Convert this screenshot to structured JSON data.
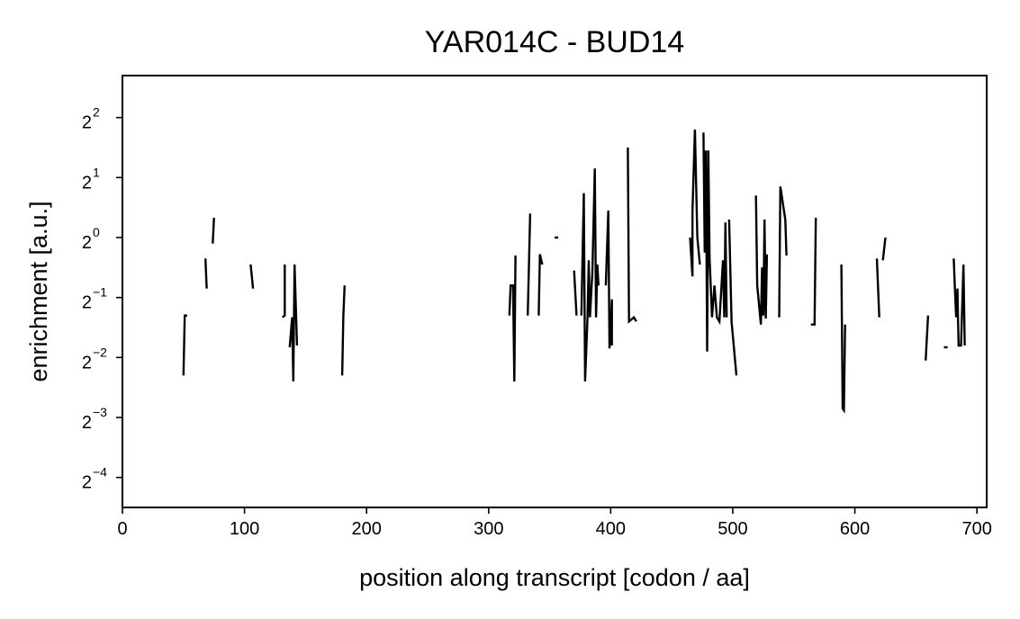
{
  "chart_data": {
    "type": "line",
    "title": "YAR014C - BUD14",
    "xlabel": "position along transcript [codon / aa]",
    "ylabel": "enrichment [a.u.]",
    "xlim": [
      0,
      708
    ],
    "ylim_log2": [
      -4.5,
      2.7
    ],
    "y_scale": "log2",
    "grid": false,
    "legend": "none",
    "line_color": "#000000",
    "x_ticks": [
      0,
      100,
      200,
      300,
      400,
      500,
      600,
      700
    ],
    "x_tick_labels": [
      "0",
      "100",
      "200",
      "300",
      "400",
      "500",
      "600",
      "700"
    ],
    "y_ticks_log2": [
      2,
      1,
      0,
      -1,
      -2,
      -3,
      -4
    ],
    "y_tick_labels": [
      {
        "base": "2",
        "exp": "2"
      },
      {
        "base": "2",
        "exp": "1"
      },
      {
        "base": "2",
        "exp": "0"
      },
      {
        "base": "2",
        "exp": "−1"
      },
      {
        "base": "2",
        "exp": "−2"
      },
      {
        "base": "2",
        "exp": "−3"
      },
      {
        "base": "2",
        "exp": "−4"
      }
    ],
    "series": [
      {
        "values_log2": [
          [
            50,
            -2.3
          ],
          [
            51,
            -1.3
          ],
          [
            53,
            -1.3
          ]
        ]
      },
      {
        "values_log2": [
          [
            68,
            -0.35
          ],
          [
            69,
            -0.85
          ]
        ]
      },
      {
        "values_log2": [
          [
            74,
            -0.1
          ],
          [
            75,
            0.33
          ]
        ]
      },
      {
        "values_log2": [
          [
            105,
            -0.45
          ],
          [
            107,
            -0.85
          ]
        ]
      },
      {
        "values_log2": [
          [
            131,
            -1.33
          ],
          [
            133,
            -1.3
          ],
          [
            133,
            -0.45
          ]
        ]
      },
      {
        "values_log2": [
          [
            137,
            -1.83
          ],
          [
            139,
            -1.33
          ],
          [
            140,
            -2.4
          ],
          [
            141,
            -0.45
          ],
          [
            143,
            -1.8
          ]
        ]
      },
      {
        "values_log2": [
          [
            180,
            -2.3
          ],
          [
            181,
            -1.3
          ],
          [
            182,
            -0.8
          ]
        ]
      },
      {
        "values_log2": [
          [
            317,
            -1.3
          ],
          [
            318,
            -0.8
          ],
          [
            320,
            -0.8
          ],
          [
            321,
            -2.4
          ],
          [
            322,
            -0.3
          ]
        ]
      },
      {
        "values_log2": [
          [
            332,
            -1.3
          ],
          [
            334,
            0.4
          ]
        ]
      },
      {
        "values_log2": [
          [
            341,
            -1.3
          ],
          [
            342,
            -0.28
          ],
          [
            344,
            -0.45
          ]
        ]
      },
      {
        "values_log2": [
          [
            354,
            0
          ],
          [
            357,
            0
          ]
        ]
      },
      {
        "values_log2": [
          [
            370,
            -0.55
          ],
          [
            372,
            -1.3
          ]
        ]
      },
      {
        "values_log2": [
          [
            376,
            -1.3
          ],
          [
            378,
            0.74
          ],
          [
            379,
            -2.4
          ],
          [
            381,
            -1.33
          ],
          [
            382,
            -0.38
          ],
          [
            383,
            -1.33
          ],
          [
            385,
            -0.58
          ],
          [
            387,
            1.15
          ],
          [
            388,
            -1.33
          ],
          [
            389,
            -0.45
          ],
          [
            390,
            -0.8
          ]
        ]
      },
      {
        "values_log2": [
          [
            396,
            -0.8
          ],
          [
            398,
            0.45
          ],
          [
            399,
            -1.85
          ],
          [
            401,
            -1.03
          ],
          [
            401,
            -1.8
          ]
        ]
      },
      {
        "values_log2": [
          [
            414,
            1.5
          ],
          [
            415,
            -1.4
          ],
          [
            419,
            -1.33
          ],
          [
            421,
            -1.4
          ]
        ]
      },
      {
        "values_log2": [
          [
            465,
            0
          ],
          [
            467,
            -0.65
          ],
          [
            467,
            0.45
          ],
          [
            469,
            1.8
          ],
          [
            471,
            0
          ],
          [
            473,
            -0.45
          ]
        ]
      },
      {
        "values_log2": [
          [
            476,
            1.75
          ],
          [
            477,
            -0.25
          ],
          [
            478,
            1.45
          ],
          [
            479,
            -1.9
          ],
          [
            480,
            1.45
          ],
          [
            481,
            -0.35
          ],
          [
            483,
            -1.33
          ],
          [
            485,
            -0.8
          ],
          [
            487,
            -1.33
          ],
          [
            489,
            -1.4
          ],
          [
            492,
            -0.38
          ],
          [
            493,
            -1.33
          ],
          [
            494,
            0.25
          ],
          [
            495,
            -1.33
          ]
        ]
      },
      {
        "values_log2": [
          [
            497,
            0.3
          ],
          [
            499,
            -1.4
          ],
          [
            503,
            -2.3
          ]
        ]
      },
      {
        "values_log2": [
          [
            519,
            0.7
          ],
          [
            520,
            -0.8
          ],
          [
            523,
            -1.45
          ],
          [
            524,
            -0.5
          ],
          [
            525,
            -1.3
          ],
          [
            526,
            0.3
          ],
          [
            527,
            -1.35
          ],
          [
            528,
            -0.28
          ]
        ]
      },
      {
        "values_log2": [
          [
            538,
            -1.33
          ],
          [
            539,
            0.85
          ],
          [
            543,
            0.3
          ],
          [
            544,
            -0.3
          ]
        ]
      },
      {
        "values_log2": [
          [
            564,
            -1.45
          ],
          [
            567,
            -1.45
          ],
          [
            568,
            0.33
          ]
        ]
      },
      {
        "values_log2": [
          [
            589,
            -0.45
          ],
          [
            590,
            -2.85
          ],
          [
            591,
            -2.88
          ],
          [
            592,
            -1.45
          ]
        ]
      },
      {
        "values_log2": [
          [
            618,
            -0.35
          ],
          [
            620,
            -1.33
          ]
        ]
      },
      {
        "values_log2": [
          [
            623,
            -0.38
          ],
          [
            625,
            0
          ]
        ]
      },
      {
        "values_log2": [
          [
            658,
            -2.05
          ],
          [
            660,
            -1.3
          ]
        ]
      },
      {
        "values_log2": [
          [
            673,
            -1.83
          ],
          [
            676,
            -1.83
          ]
        ]
      },
      {
        "values_log2": [
          [
            681,
            -0.35
          ],
          [
            682,
            -0.85
          ],
          [
            683,
            -1.33
          ],
          [
            684,
            -0.85
          ],
          [
            685,
            -1.8
          ],
          [
            687,
            -1.8
          ],
          [
            689,
            -0.45
          ],
          [
            690,
            -1.8
          ]
        ]
      }
    ]
  }
}
